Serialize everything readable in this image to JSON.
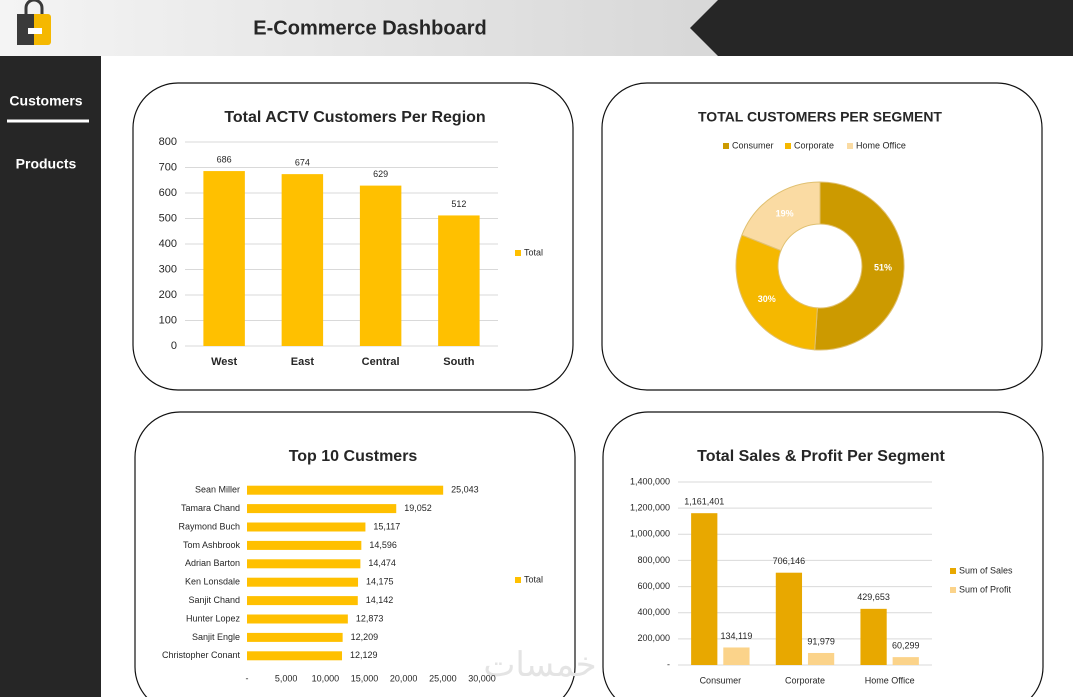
{
  "header": {
    "title": "E-Commerce Dashboard"
  },
  "nav": [
    "Customers",
    "Products"
  ],
  "watermark": "خمسات",
  "chart_data": [
    {
      "type": "bar",
      "title": "Total ACTV Customers Per Region",
      "categories": [
        "West",
        "East",
        "Central",
        "South"
      ],
      "series": [
        {
          "name": "Total",
          "color": "#ffc000",
          "values": [
            686,
            674,
            629,
            512
          ]
        }
      ],
      "ylim": [
        0,
        800
      ],
      "yticks": [
        0,
        100,
        200,
        300,
        400,
        500,
        600,
        700,
        800
      ],
      "grid": true,
      "legend": "right"
    },
    {
      "type": "pie",
      "title": "TOTAL CUSTOMERS PER SEGMENT",
      "donut": true,
      "legend": "top",
      "categories": [
        "Consumer",
        "Corporate",
        "Home Office"
      ],
      "values": [
        51,
        30,
        19
      ],
      "value_labels": [
        "51%",
        "30%",
        "19%"
      ],
      "colors": [
        "#cc9a00",
        "#f5b800",
        "#fadba3"
      ]
    },
    {
      "type": "hbar",
      "title": "Top 10 Custmers",
      "categories": [
        "Sean Miller",
        "Tamara Chand",
        "Raymond Buch",
        "Tom Ashbrook",
        "Adrian Barton",
        "Ken Lonsdale",
        "Sanjit Chand",
        "Hunter Lopez",
        "Sanjit Engle",
        "Christopher Conant"
      ],
      "series": [
        {
          "name": "Total",
          "color": "#ffc000",
          "values": [
            25043,
            19052,
            15117,
            14596,
            14474,
            14175,
            14142,
            12873,
            12209,
            12129
          ],
          "value_labels": [
            "25,043",
            "19,052",
            "15,117",
            "14,596",
            "14,474",
            "14,175",
            "14,142",
            "12,873",
            "12,209",
            "12,129"
          ]
        }
      ],
      "xlim": [
        0,
        30000
      ],
      "xticks": [
        {
          "value": 0,
          "label": "-"
        },
        {
          "value": 5000,
          "label": "5,000"
        },
        {
          "value": 10000,
          "label": "10,000"
        },
        {
          "value": 15000,
          "label": "15,000"
        },
        {
          "value": 20000,
          "label": "20,000"
        },
        {
          "value": 25000,
          "label": "25,000"
        },
        {
          "value": 30000,
          "label": "30,000"
        }
      ],
      "grid": false,
      "legend": "right"
    },
    {
      "type": "bar",
      "title": "Total Sales & Profit Per Segment",
      "categories": [
        "Consumer",
        "Corporate",
        "Home Office"
      ],
      "series": [
        {
          "name": "Sum of Sales",
          "color": "#e8a800",
          "values": [
            1161401,
            706146,
            429653
          ],
          "value_labels": [
            "1,161,401",
            "706,146",
            "429,653"
          ]
        },
        {
          "name": "Sum of Profit",
          "color": "#fbd38a",
          "values": [
            134119,
            91979,
            60299
          ],
          "value_labels": [
            "134,119",
            "91,979",
            "60,299"
          ]
        }
      ],
      "ylim": [
        0,
        1400000
      ],
      "yticks": [
        {
          "value": 0,
          "label": "-"
        },
        {
          "value": 200000,
          "label": "200,000"
        },
        {
          "value": 400000,
          "label": "400,000"
        },
        {
          "value": 600000,
          "label": "600,000"
        },
        {
          "value": 800000,
          "label": "800,000"
        },
        {
          "value": 1000000,
          "label": "1,000,000"
        },
        {
          "value": 1200000,
          "label": "1,200,000"
        },
        {
          "value": 1400000,
          "label": "1,400,000"
        }
      ],
      "grid": true,
      "legend": "right"
    }
  ]
}
